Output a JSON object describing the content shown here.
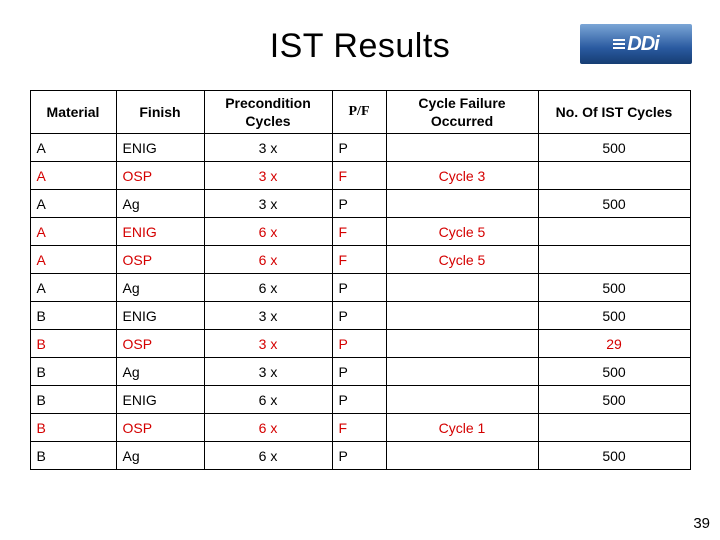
{
  "title": "IST Results",
  "logo": {
    "text": "DDi",
    "bg_gradient": [
      "#7ba6d6",
      "#2a5aa0",
      "#163d73"
    ],
    "text_color": "#ffffff"
  },
  "page_number": "39",
  "table": {
    "columns": [
      "Material",
      "Finish",
      "Precondition Cycles",
      "P/F",
      "Cycle Failure Occurred",
      "No. Of IST Cycles"
    ],
    "rows": [
      {
        "material": "A",
        "finish": "ENIG",
        "precondition": "3 x",
        "pf": "P",
        "failure": "",
        "cycles": "500",
        "red": false
      },
      {
        "material": "A",
        "finish": "OSP",
        "precondition": "3 x",
        "pf": "F",
        "failure": "Cycle 3",
        "cycles": "",
        "red": true
      },
      {
        "material": "A",
        "finish": "Ag",
        "precondition": "3 x",
        "pf": "P",
        "failure": "",
        "cycles": "500",
        "red": false
      },
      {
        "material": "A",
        "finish": "ENIG",
        "precondition": "6 x",
        "pf": "F",
        "failure": "Cycle 5",
        "cycles": "",
        "red": true
      },
      {
        "material": "A",
        "finish": "OSP",
        "precondition": "6 x",
        "pf": "F",
        "failure": "Cycle 5",
        "cycles": "",
        "red": true
      },
      {
        "material": "A",
        "finish": "Ag",
        "precondition": "6 x",
        "pf": "P",
        "failure": "",
        "cycles": "500",
        "red": false
      },
      {
        "material": "B",
        "finish": "ENIG",
        "precondition": "3 x",
        "pf": "P",
        "failure": "",
        "cycles": "500",
        "red": false
      },
      {
        "material": "B",
        "finish": "OSP",
        "precondition": "3 x",
        "pf": "P",
        "failure": "",
        "cycles": "29",
        "red": true
      },
      {
        "material": "B",
        "finish": "Ag",
        "precondition": "3 x",
        "pf": "P",
        "failure": "",
        "cycles": "500",
        "red": false
      },
      {
        "material": "B",
        "finish": "ENIG",
        "precondition": "6 x",
        "pf": "P",
        "failure": "",
        "cycles": "500",
        "red": false
      },
      {
        "material": "B",
        "finish": "OSP",
        "precondition": "6 x",
        "pf": "F",
        "failure": "Cycle 1",
        "cycles": "",
        "red": true
      },
      {
        "material": "B",
        "finish": "Ag",
        "precondition": "6 x",
        "pf": "P",
        "failure": "",
        "cycles": "500",
        "red": false
      }
    ]
  },
  "style": {
    "title_fontsize": 34,
    "cell_fontsize": 14,
    "border_color": "#000000",
    "text_color": "#000000",
    "red_color": "#d40000",
    "background": "#ffffff"
  }
}
